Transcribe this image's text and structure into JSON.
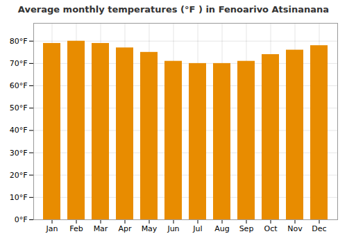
{
  "chart_data": {
    "type": "bar",
    "title": "Average monthly temperatures (°F ) in Fenoarivo Atsinanana",
    "categories": [
      "Jan",
      "Feb",
      "Mar",
      "Apr",
      "May",
      "Jun",
      "Jul",
      "Aug",
      "Sep",
      "Oct",
      "Nov",
      "Dec"
    ],
    "values": [
      79,
      80,
      79,
      77,
      75,
      71,
      70,
      70,
      71,
      74,
      76,
      78
    ],
    "color": "#E88C00",
    "ylim": [
      0,
      88
    ],
    "yticks": [
      {
        "value": 0,
        "label": "0°F"
      },
      {
        "value": 10,
        "label": "10°F"
      },
      {
        "value": 20,
        "label": "20°F"
      },
      {
        "value": 30,
        "label": "30°F"
      },
      {
        "value": 40,
        "label": "40°F"
      },
      {
        "value": 50,
        "label": "50°F"
      },
      {
        "value": 60,
        "label": "60°F"
      },
      {
        "value": 70,
        "label": "70°F"
      },
      {
        "value": 80,
        "label": "80°F"
      }
    ],
    "grid": true
  }
}
